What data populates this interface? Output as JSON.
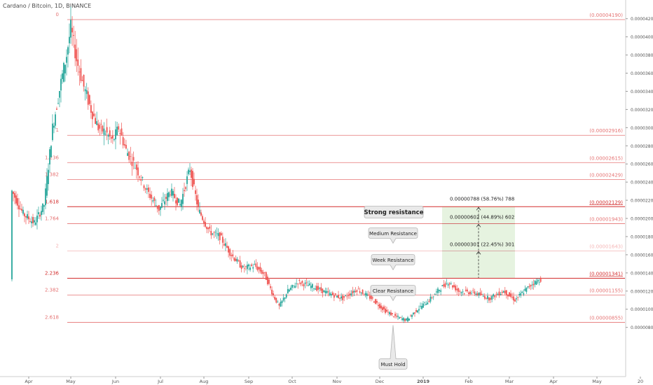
{
  "header": {
    "symbol_line": "Cardano / Bitcoin, 1D, BINANCE"
  },
  "chart_data": {
    "type": "candlestick",
    "title": "Cardano / Bitcoin, 1D, BINANCE",
    "xlabel": "",
    "ylabel": "",
    "x_ticks": [
      "Apr",
      "May",
      "Jun",
      "Jul",
      "Aug",
      "Sep",
      "Oct",
      "Nov",
      "Dec",
      "2019",
      "Feb",
      "Mar",
      "Apr",
      "May",
      "20"
    ],
    "y_ticks": [
      "0.00000800",
      "0.00001000",
      "0.00001200",
      "0.00001400",
      "0.00001600",
      "0.00001800",
      "0.00002000",
      "0.00002200",
      "0.00002400",
      "0.00002600",
      "0.00002800",
      "0.00003000",
      "0.00003200",
      "0.00003400",
      "0.00003600",
      "0.00003800",
      "0.00004000",
      "0.00004200"
    ],
    "ylim": [
      7.1e-06,
      4.34e-05
    ],
    "fib_levels": [
      {
        "ratio": "0",
        "price": 4.19e-05,
        "label": "(0.00004190)",
        "color": "#e57373"
      },
      {
        "ratio": "1",
        "price": 2.916e-05,
        "label": "(0.00002916)",
        "color": "#e57373"
      },
      {
        "ratio": "1.236",
        "price": 2.615e-05,
        "label": "(0.00002615)",
        "color": "#e57373"
      },
      {
        "ratio": "1.382",
        "price": 2.429e-05,
        "label": "(0.00002429)",
        "color": "#e57373"
      },
      {
        "ratio": "1.618",
        "price": 2.129e-05,
        "label": "(0.00002129)",
        "color": "#d32f2f"
      },
      {
        "ratio": "1.764",
        "price": 1.943e-05,
        "label": "(0.00001943)",
        "color": "#e57373"
      },
      {
        "ratio": "2",
        "price": 1.643e-05,
        "label": "(0.00001643)",
        "color": "#f4b6b6"
      },
      {
        "ratio": "2.236",
        "price": 1.341e-05,
        "label": "(0.00001341)",
        "color": "#d32f2f"
      },
      {
        "ratio": "2.382",
        "price": 1.155e-05,
        "label": "(0.00001155)",
        "color": "#e57373"
      },
      {
        "ratio": "2.618",
        "price": 8.55e-06,
        "label": "(0.00000855)",
        "color": "#e57373"
      }
    ],
    "annotations": [
      {
        "text": "Strong resistance",
        "bold": true
      },
      {
        "text": "Medium Resistance"
      },
      {
        "text": "Week Resistance"
      },
      {
        "text": "Clear Resistance"
      },
      {
        "text": "Must Hold"
      }
    ],
    "measure_labels": [
      "0.00000788 (58.76%) 788",
      "0.00000602 (44.89%) 602",
      "0.00000301 (22.45%) 301"
    ],
    "price_path": [
      [
        "2018-03-20",
        2.3e-05
      ],
      [
        "2018-03-28",
        2.05e-05
      ],
      [
        "2018-04-05",
        1.95e-05
      ],
      [
        "2018-04-12",
        2.15e-05
      ],
      [
        "2018-04-18",
        3e-05
      ],
      [
        "2018-04-24",
        3.5e-05
      ],
      [
        "2018-04-28",
        3.8e-05
      ],
      [
        "2018-05-01",
        4.1e-05
      ],
      [
        "2018-05-05",
        3.75e-05
      ],
      [
        "2018-05-10",
        3.45e-05
      ],
      [
        "2018-05-15",
        3.2e-05
      ],
      [
        "2018-05-20",
        3e-05
      ],
      [
        "2018-05-25",
        2.95e-05
      ],
      [
        "2018-05-30",
        2.85e-05
      ],
      [
        "2018-06-03",
        3e-05
      ],
      [
        "2018-06-08",
        2.75e-05
      ],
      [
        "2018-06-15",
        2.55e-05
      ],
      [
        "2018-06-22",
        2.3e-05
      ],
      [
        "2018-06-30",
        2.1e-05
      ],
      [
        "2018-07-08",
        2.3e-05
      ],
      [
        "2018-07-15",
        2.15e-05
      ],
      [
        "2018-07-22",
        2.55e-05
      ],
      [
        "2018-07-28",
        2.1e-05
      ],
      [
        "2018-08-05",
        1.85e-05
      ],
      [
        "2018-08-12",
        1.8e-05
      ],
      [
        "2018-08-20",
        1.6e-05
      ],
      [
        "2018-08-28",
        1.45e-05
      ],
      [
        "2018-09-05",
        1.48e-05
      ],
      [
        "2018-09-12",
        1.38e-05
      ],
      [
        "2018-09-18",
        1.15e-05
      ],
      [
        "2018-09-22",
        1.03e-05
      ],
      [
        "2018-09-28",
        1.2e-05
      ],
      [
        "2018-10-05",
        1.3e-05
      ],
      [
        "2018-10-15",
        1.25e-05
      ],
      [
        "2018-10-25",
        1.18e-05
      ],
      [
        "2018-11-05",
        1.12e-05
      ],
      [
        "2018-11-15",
        1.22e-05
      ],
      [
        "2018-11-25",
        1.12e-05
      ],
      [
        "2018-12-05",
        9.8e-06
      ],
      [
        "2018-12-12",
        9.2e-06
      ],
      [
        "2018-12-20",
        8.8e-06
      ],
      [
        "2018-12-28",
        1e-05
      ],
      [
        "2019-01-05",
        1.1e-05
      ],
      [
        "2019-01-12",
        1.22e-05
      ],
      [
        "2019-01-18",
        1.3e-05
      ],
      [
        "2019-01-25",
        1.2e-05
      ],
      [
        "2019-02-05",
        1.18e-05
      ],
      [
        "2019-02-15",
        1.12e-05
      ],
      [
        "2019-02-25",
        1.2e-05
      ],
      [
        "2019-03-05",
        1.1e-05
      ],
      [
        "2019-03-10",
        1.18e-05
      ],
      [
        "2019-03-17",
        1.28e-05
      ],
      [
        "2019-03-23",
        1.33e-05
      ]
    ],
    "colors": {
      "up": "#26a69a",
      "down": "#ef5350",
      "measure_fill": "#e3f2dd",
      "grid_axis": "#cccccc",
      "label_text": "#333333"
    }
  }
}
